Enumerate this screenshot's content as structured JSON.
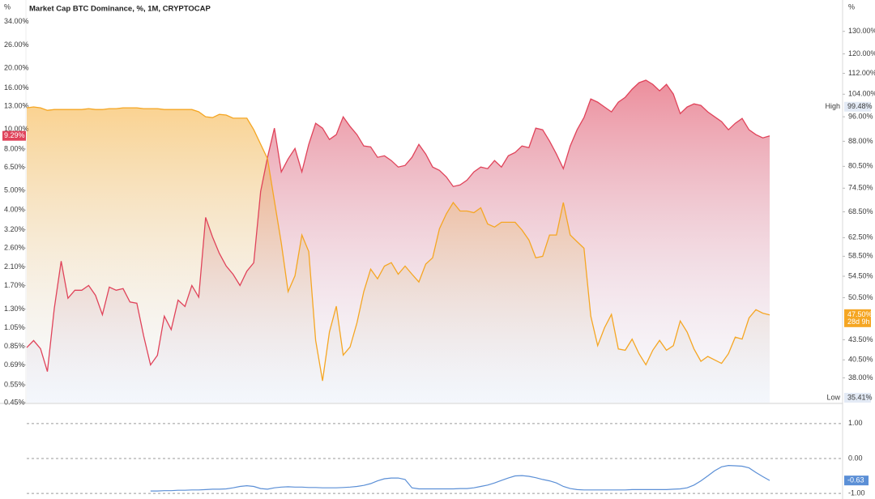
{
  "chart_data": [
    {
      "type": "area",
      "title": "Market Cap BTC Dominance, %, 1M, CRYPTOCAP",
      "y_unit": "%",
      "y2_unit": "%",
      "log_scale": true,
      "ylim": [
        0.45,
        43.4
      ],
      "yticks": [
        {
          "value": 34,
          "label": "34.00%"
        },
        {
          "value": 26,
          "label": "26.00%"
        },
        {
          "value": 20,
          "label": "20.00%"
        },
        {
          "value": 16,
          "label": "16.00%"
        },
        {
          "value": 13,
          "label": "13.00%"
        },
        {
          "value": 10,
          "label": "10.00%"
        },
        {
          "value": 8,
          "label": "8.00%"
        },
        {
          "value": 6.5,
          "label": "6.50%"
        },
        {
          "value": 5,
          "label": "5.00%"
        },
        {
          "value": 4,
          "label": "4.00%"
        },
        {
          "value": 3.2,
          "label": "3.20%"
        },
        {
          "value": 2.6,
          "label": "2.60%"
        },
        {
          "value": 2.1,
          "label": "2.10%"
        },
        {
          "value": 1.7,
          "label": "1.70%"
        },
        {
          "value": 1.3,
          "label": "1.30%"
        },
        {
          "value": 1.05,
          "label": "1.05%"
        },
        {
          "value": 0.85,
          "label": "0.85%"
        },
        {
          "value": 0.69,
          "label": "0.69%"
        },
        {
          "value": 0.55,
          "label": "0.55%"
        },
        {
          "value": 0.45,
          "label": "0.45%"
        }
      ],
      "y2lim": [
        34.8,
        145.3
      ],
      "y2ticks": [
        {
          "value": 130,
          "label": "130.00%"
        },
        {
          "value": 120,
          "label": "120.00%"
        },
        {
          "value": 112,
          "label": "112.00%"
        },
        {
          "value": 104,
          "label": "104.00%"
        },
        {
          "value": 96,
          "label": "96.00%"
        },
        {
          "value": 88,
          "label": "88.00%"
        },
        {
          "value": 80.5,
          "label": "80.50%"
        },
        {
          "value": 74.5,
          "label": "74.50%"
        },
        {
          "value": 68.5,
          "label": "68.50%"
        },
        {
          "value": 62.5,
          "label": "62.50%"
        },
        {
          "value": 58.5,
          "label": "58.50%"
        },
        {
          "value": 54.5,
          "label": "54.50%"
        },
        {
          "value": 50.5,
          "label": "50.50%"
        },
        {
          "value": 43.5,
          "label": "43.50%"
        },
        {
          "value": 40.5,
          "label": "40.50%"
        },
        {
          "value": 38,
          "label": "38.00%"
        }
      ],
      "high": {
        "label": "High",
        "value": 99.48,
        "value_label": "99.48%"
      },
      "low": {
        "label": "Low",
        "value": 35.41,
        "value_label": "35.41%"
      },
      "countdown": "28d 9h",
      "series": [
        {
          "color": "#e0435a",
          "axis": "y",
          "last_label": "9.29%",
          "values": [
            0.84,
            0.91,
            0.83,
            0.64,
            1.31,
            2.24,
            1.47,
            1.61,
            1.61,
            1.7,
            1.52,
            1.22,
            1.67,
            1.61,
            1.64,
            1.41,
            1.39,
            0.96,
            0.69,
            0.77,
            1.2,
            1.03,
            1.44,
            1.34,
            1.7,
            1.49,
            3.68,
            2.95,
            2.45,
            2.12,
            1.93,
            1.7,
            2.0,
            2.2,
            4.94,
            7.28,
            10.14,
            6.17,
            7.15,
            8.05,
            6.17,
            8.43,
            10.71,
            10.14,
            8.91,
            9.42,
            11.53,
            10.33,
            9.42,
            8.28,
            8.2,
            7.28,
            7.41,
            7.02,
            6.52,
            6.64,
            7.28,
            8.43,
            7.55,
            6.52,
            6.28,
            5.83,
            5.23,
            5.32,
            5.62,
            6.17,
            6.52,
            6.4,
            7.02,
            6.52,
            7.41,
            7.69,
            8.28,
            8.13,
            10.14,
            9.95,
            8.75,
            7.55,
            6.4,
            8.28,
            9.95,
            11.43,
            14.12,
            13.61,
            12.88,
            12.19,
            13.61,
            14.39,
            15.77,
            16.98,
            17.46,
            16.67,
            15.48,
            16.67,
            14.92,
            11.96,
            12.88,
            13.36,
            13.12,
            12.19,
            11.53,
            10.92,
            9.95,
            10.71,
            11.32,
            9.95,
            9.42,
            9.08,
            9.29
          ]
        },
        {
          "color": "#f5a623",
          "axis": "y2",
          "last_label": "47.50%",
          "values": [
            99.1,
            99.4,
            99.1,
            98.2,
            98.5,
            98.5,
            98.5,
            98.5,
            98.5,
            98.8,
            98.5,
            98.5,
            98.8,
            98.8,
            99.1,
            99.1,
            99.1,
            98.8,
            98.8,
            98.8,
            98.5,
            98.5,
            98.5,
            98.5,
            98.5,
            97.7,
            96.0,
            95.7,
            96.8,
            96.6,
            95.5,
            95.5,
            95.5,
            91.7,
            87.1,
            82.7,
            71.2,
            61.3,
            51.6,
            54.6,
            63.1,
            59.5,
            43.4,
            37.6,
            44.7,
            49.0,
            41.2,
            42.4,
            46.2,
            51.6,
            55.9,
            54.0,
            56.5,
            57.2,
            54.9,
            56.5,
            54.9,
            53.4,
            56.9,
            58.2,
            64.5,
            68.0,
            70.8,
            68.7,
            68.7,
            68.3,
            69.5,
            65.6,
            64.9,
            66.0,
            66.0,
            66.0,
            64.2,
            62.0,
            58.2,
            58.5,
            63.1,
            63.1,
            70.8,
            63.1,
            61.6,
            60.2,
            47.3,
            42.6,
            45.4,
            47.6,
            42.1,
            41.9,
            43.6,
            41.4,
            39.8,
            41.9,
            43.4,
            41.9,
            42.6,
            46.5,
            44.7,
            42.1,
            40.3,
            41.0,
            40.5,
            40.0,
            41.4,
            43.9,
            43.6,
            47.0,
            48.4,
            47.8,
            47.5
          ]
        }
      ]
    },
    {
      "type": "line",
      "ylim": [
        -1.16,
        1.53
      ],
      "yticks": [
        {
          "value": 1,
          "label": "1.00"
        },
        {
          "value": 0,
          "label": "0.00"
        },
        {
          "value": -1,
          "label": "-1.00"
        }
      ],
      "grid": true,
      "series": [
        {
          "color": "#5b8fd6",
          "last_label": "-0.63",
          "values": [
            null,
            null,
            null,
            null,
            null,
            null,
            null,
            null,
            null,
            null,
            null,
            null,
            null,
            null,
            null,
            null,
            null,
            null,
            -0.93,
            -0.93,
            -0.92,
            -0.92,
            -0.91,
            -0.91,
            -0.9,
            -0.9,
            -0.89,
            -0.88,
            -0.88,
            -0.87,
            -0.84,
            -0.8,
            -0.78,
            -0.8,
            -0.86,
            -0.88,
            -0.84,
            -0.82,
            -0.81,
            -0.82,
            -0.82,
            -0.83,
            -0.83,
            -0.84,
            -0.84,
            -0.84,
            -0.83,
            -0.82,
            -0.8,
            -0.77,
            -0.72,
            -0.64,
            -0.58,
            -0.56,
            -0.56,
            -0.6,
            -0.84,
            -0.87,
            -0.87,
            -0.87,
            -0.87,
            -0.87,
            -0.87,
            -0.86,
            -0.86,
            -0.84,
            -0.8,
            -0.76,
            -0.7,
            -0.63,
            -0.56,
            -0.5,
            -0.49,
            -0.51,
            -0.55,
            -0.6,
            -0.64,
            -0.7,
            -0.8,
            -0.86,
            -0.89,
            -0.9,
            -0.9,
            -0.9,
            -0.9,
            -0.9,
            -0.9,
            -0.9,
            -0.89,
            -0.89,
            -0.89,
            -0.89,
            -0.89,
            -0.89,
            -0.88,
            -0.87,
            -0.84,
            -0.76,
            -0.64,
            -0.5,
            -0.35,
            -0.24,
            -0.2,
            -0.21,
            -0.22,
            -0.27,
            -0.4,
            -0.52,
            -0.63
          ]
        }
      ]
    }
  ]
}
